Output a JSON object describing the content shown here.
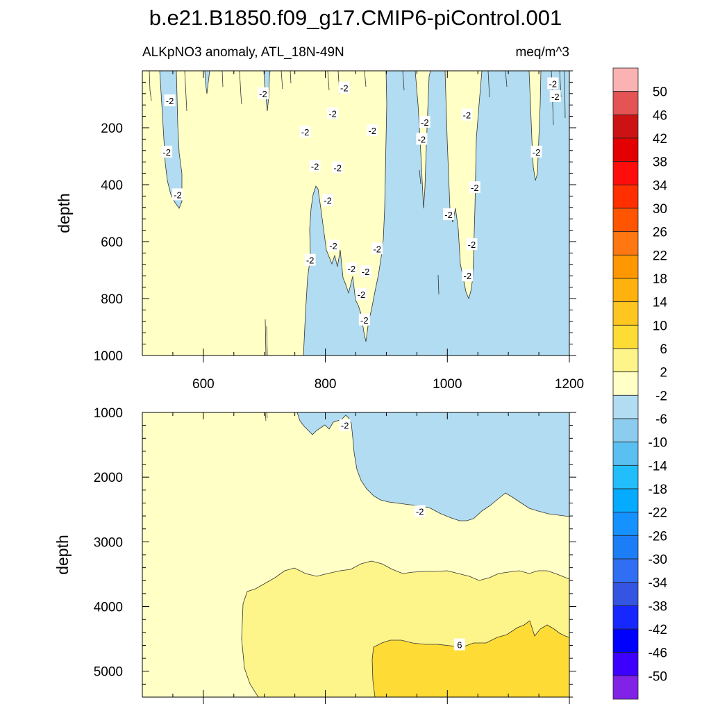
{
  "title": "b.e21.B1850.f09_g17.CMIP6-piControl.001",
  "variable_label": "ALKpNO3 anomaly, ATL_18N-49N",
  "units_label": "meq/m^3",
  "chart_data": [
    {
      "type": "contour",
      "panel": "upper",
      "xlabel": "",
      "ylabel": "depth",
      "xlim": [
        500,
        1200
      ],
      "ylim": [
        0,
        1000
      ],
      "y_inverted": true,
      "xticks": [
        600,
        800,
        1000,
        1200
      ],
      "yticks": [
        200,
        400,
        600,
        800,
        1000
      ],
      "contour_labels": [
        {
          "text": "-2",
          "x": 545,
          "y": 105
        },
        {
          "text": "-2",
          "x": 540,
          "y": 285
        },
        {
          "text": "-2",
          "x": 558,
          "y": 435
        },
        {
          "text": "-2",
          "x": 698,
          "y": 80
        },
        {
          "text": "-2",
          "x": 767,
          "y": 215
        },
        {
          "text": "-2",
          "x": 783,
          "y": 335
        },
        {
          "text": "-2",
          "x": 812,
          "y": 150
        },
        {
          "text": "-2",
          "x": 820,
          "y": 340
        },
        {
          "text": "-2",
          "x": 831,
          "y": 60
        },
        {
          "text": "-2",
          "x": 804,
          "y": 455
        },
        {
          "text": "-2",
          "x": 813,
          "y": 615
        },
        {
          "text": "-2",
          "x": 775,
          "y": 665
        },
        {
          "text": "-2",
          "x": 843,
          "y": 695
        },
        {
          "text": "-2",
          "x": 866,
          "y": 705
        },
        {
          "text": "-2",
          "x": 885,
          "y": 625
        },
        {
          "text": "-2",
          "x": 877,
          "y": 210
        },
        {
          "text": "-2",
          "x": 859,
          "y": 785
        },
        {
          "text": "-2",
          "x": 864,
          "y": 875
        },
        {
          "text": "-2",
          "x": 958,
          "y": 240
        },
        {
          "text": "-2",
          "x": 963,
          "y": 180
        },
        {
          "text": "-2",
          "x": 1002,
          "y": 505
        },
        {
          "text": "-2",
          "x": 1032,
          "y": 155
        },
        {
          "text": "-2",
          "x": 1045,
          "y": 410
        },
        {
          "text": "-2",
          "x": 1040,
          "y": 610
        },
        {
          "text": "-2",
          "x": 1033,
          "y": 720
        },
        {
          "text": "-2",
          "x": 1146,
          "y": 285
        },
        {
          "text": "-2",
          "x": 1177,
          "y": 90
        },
        {
          "text": "-2",
          "x": 1173,
          "y": 45
        }
      ]
    },
    {
      "type": "contour",
      "panel": "lower",
      "xlabel": "",
      "ylabel": "depth",
      "xlim": [
        500,
        1200
      ],
      "ylim": [
        1000,
        5400
      ],
      "y_inverted": true,
      "xticks": [
        600,
        800,
        1000,
        1200
      ],
      "yticks": [
        1000,
        2000,
        3000,
        4000,
        5000
      ],
      "contour_labels": [
        {
          "text": "-2",
          "x": 832,
          "y": 1200
        },
        {
          "text": "-2",
          "x": 955,
          "y": 2530
        },
        {
          "text": "6",
          "x": 1020,
          "y": 4590
        }
      ]
    }
  ],
  "colorbar": {
    "levels": [
      "50",
      "46",
      "42",
      "38",
      "34",
      "30",
      "26",
      "22",
      "18",
      "14",
      "10",
      "6",
      "2",
      "-2",
      "-6",
      "-10",
      "-14",
      "-18",
      "-22",
      "-26",
      "-30",
      "-34",
      "-38",
      "-42",
      "-46",
      "-50"
    ],
    "colors": [
      "#fbb2b2",
      "#e45454",
      "#cc1212",
      "#e30000",
      "#ff0d0d",
      "#ff2f00",
      "#ff5500",
      "#ff7711",
      "#ff9700",
      "#ffb20d",
      "#ffc620",
      "#ffdc35",
      "#fdf48a",
      "#ffffc6",
      "#b1dcf1",
      "#8ccdef",
      "#5abff1",
      "#22bdfb",
      "#05abff",
      "#1592ff",
      "#1c7ef7",
      "#306ff3",
      "#3355e1",
      "#1628ff",
      "#0000ff",
      "#3d00ff",
      "#8222e7"
    ]
  },
  "colors": {
    "fill_neg2": "#b1dcf1",
    "fill_pos2": "#ffffc6",
    "fill_2_6": "#fdf48a",
    "fill_6_10": "#ffdc35"
  }
}
